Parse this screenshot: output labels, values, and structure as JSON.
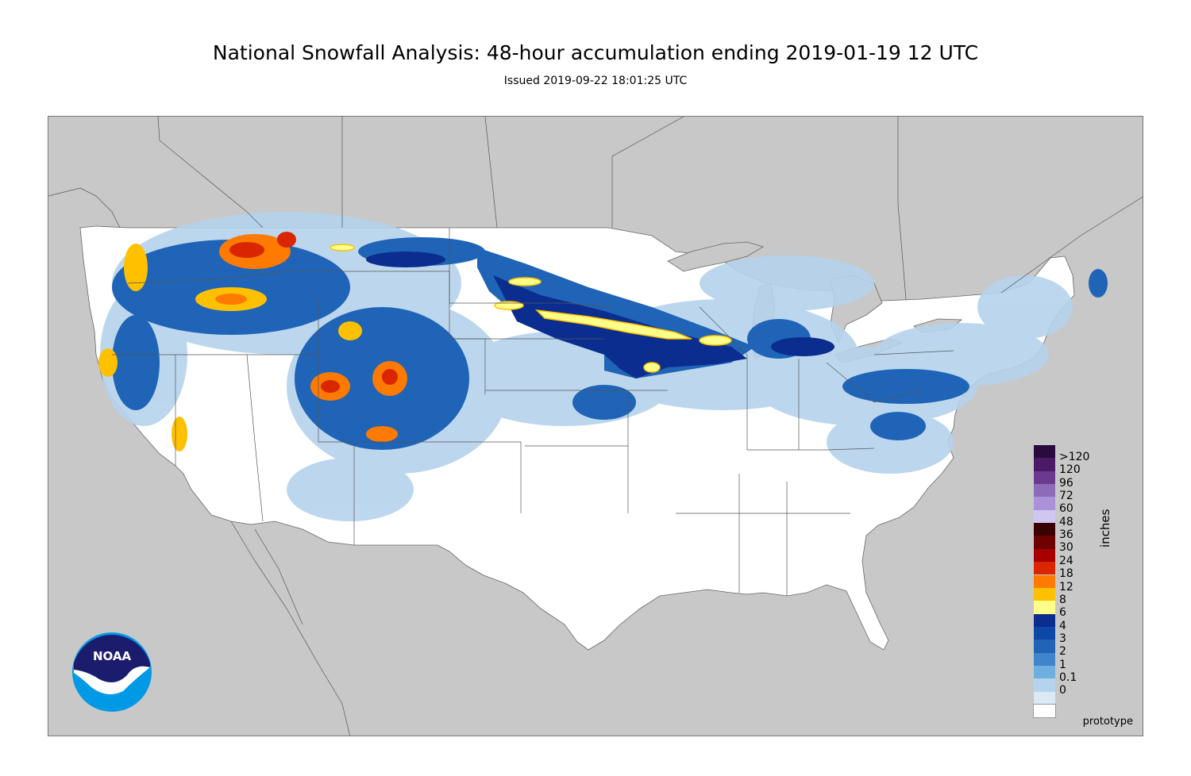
{
  "map": {
    "title": "National Snowfall Analysis: 48-hour accumulation ending 2019-01-19 12 UTC",
    "subtitle": "Issued 2019-09-22 18:01:25 UTC",
    "watermark": "prototype",
    "logo_text": "NOAA",
    "colors": {
      "water_land_outside": "#c8c8c8",
      "us_land": "#ffffff",
      "borders": "#555555"
    }
  },
  "legend": {
    "unit": "inches",
    "items": [
      {
        "label": ">120",
        "color": "#2a0b3e"
      },
      {
        "label": "120",
        "color": "#4b1a66"
      },
      {
        "label": "96",
        "color": "#6b3a90"
      },
      {
        "label": "72",
        "color": "#8c6bb8"
      },
      {
        "label": "60",
        "color": "#ab92d8"
      },
      {
        "label": "48",
        "color": "#cfc7f2"
      },
      {
        "label": "36",
        "color": "#3a0000"
      },
      {
        "label": "30",
        "color": "#6e0000"
      },
      {
        "label": "24",
        "color": "#a80000"
      },
      {
        "label": "18",
        "color": "#d92600"
      },
      {
        "label": "12",
        "color": "#ff7a00"
      },
      {
        "label": "8",
        "color": "#ffc000"
      },
      {
        "label": "6",
        "color": "#ffff8a"
      },
      {
        "label": "4",
        "color": "#0b2d8f"
      },
      {
        "label": "3",
        "color": "#0d47a8"
      },
      {
        "label": "2",
        "color": "#1f64b6"
      },
      {
        "label": "1",
        "color": "#3f85cc"
      },
      {
        "label": "0.1",
        "color": "#6faee0"
      },
      {
        "label": "0",
        "color": "#b5d3ec"
      }
    ],
    "bottom_colors": [
      "#dbe9f5",
      "#ffffff"
    ]
  }
}
